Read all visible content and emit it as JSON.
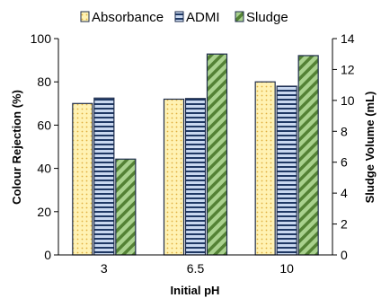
{
  "chart_data": {
    "type": "bar",
    "categories": [
      "3",
      "6.5",
      "10"
    ],
    "xlabel": "Initial pH",
    "ylabel": "Colour Rejection (%)",
    "y2label": "Sludge Volume (mL)",
    "ylim": [
      0,
      100
    ],
    "y2lim": [
      0,
      14
    ],
    "yticks": [
      0,
      20,
      40,
      60,
      80,
      100
    ],
    "y2ticks": [
      0,
      2,
      4,
      6,
      8,
      10,
      12,
      14
    ],
    "grid": false,
    "legend_position": "top",
    "series": [
      {
        "name": "Absorbance",
        "axis": "left",
        "values": [
          70,
          72,
          80
        ],
        "color": "#fff2b3",
        "pattern": "dots"
      },
      {
        "name": "ADMI",
        "axis": "left",
        "values": [
          72.5,
          72.3,
          78
        ],
        "color": "#b4c7e7",
        "pattern": "horizontal-stripes"
      },
      {
        "name": "Sludge",
        "axis": "right",
        "values": [
          6.2,
          13.0,
          12.9
        ],
        "color": "#a9d18e",
        "pattern": "diagonal-stripes"
      }
    ]
  }
}
